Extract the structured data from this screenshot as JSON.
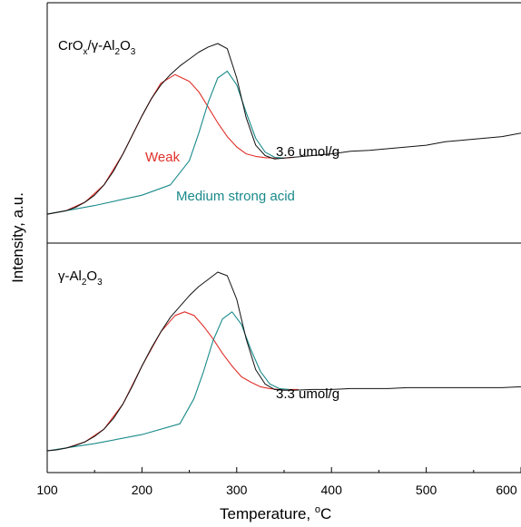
{
  "chart_data": {
    "type": "line",
    "xlabel": "Temperature, °C",
    "xlabel_main": "Temperature, ",
    "xlabel_unit_sup": "o",
    "xlabel_unit": "C",
    "ylabel": "Intensity, a.u.",
    "xlim": [
      100,
      600
    ],
    "x_ticks": [
      "100",
      "200",
      "300",
      "400",
      "500",
      "600"
    ],
    "grid": false,
    "colors": {
      "measured": "#111111",
      "weak": "#e0302a",
      "medium_strong_acid": "#1a8a8a",
      "axis": "#000000"
    },
    "panels": [
      {
        "label": "CrOₓ/γ-Al₂O₃",
        "label_parts": [
          "CrO",
          "x",
          "/γ-Al",
          "2",
          "O",
          "3"
        ],
        "acid_amount": "3.6 umol/g",
        "annotations": {
          "weak": "Weak",
          "medium_strong_acid": "Medium strong acid"
        },
        "series": [
          {
            "key": "measured",
            "x": [
              100,
              110,
              120,
              130,
              140,
              150,
              160,
              170,
              180,
              190,
              200,
              210,
              220,
              230,
              240,
              250,
              260,
              270,
              280,
              290,
              300,
              310,
              320,
              330,
              340,
              350,
              360,
              380,
              400,
              420,
              440,
              460,
              480,
              500,
              520,
              540,
              560,
              580,
              600
            ],
            "y": [
              0.01,
              0.02,
              0.03,
              0.05,
              0.08,
              0.12,
              0.18,
              0.26,
              0.36,
              0.47,
              0.58,
              0.68,
              0.76,
              0.82,
              0.87,
              0.91,
              0.95,
              0.98,
              1.0,
              0.97,
              0.8,
              0.57,
              0.41,
              0.35,
              0.33,
              0.335,
              0.34,
              0.35,
              0.36,
              0.375,
              0.38,
              0.39,
              0.4,
              0.41,
              0.43,
              0.44,
              0.45,
              0.46,
              0.48
            ]
          },
          {
            "key": "weak",
            "x": [
              100,
              120,
              140,
              160,
              180,
              200,
              210,
              220,
              235,
              250,
              260,
              270,
              280,
              290,
              300,
              310,
              320,
              330,
              340,
              350,
              360
            ],
            "y": [
              0.01,
              0.03,
              0.08,
              0.18,
              0.36,
              0.58,
              0.68,
              0.77,
              0.82,
              0.78,
              0.72,
              0.63,
              0.54,
              0.46,
              0.4,
              0.36,
              0.345,
              0.338,
              0.335,
              0.336,
              0.34
            ]
          },
          {
            "key": "medium_strong_acid",
            "x": [
              100,
              150,
              200,
              230,
              250,
              260,
              270,
              280,
              290,
              300,
              310,
              320,
              330,
              340,
              350
            ],
            "y": [
              0.01,
              0.06,
              0.12,
              0.18,
              0.32,
              0.48,
              0.66,
              0.8,
              0.84,
              0.76,
              0.6,
              0.45,
              0.37,
              0.34,
              0.335
            ]
          }
        ]
      },
      {
        "label": "γ-Al₂O₃",
        "label_parts": [
          "",
          "",
          "γ-Al",
          "2",
          "O",
          "3"
        ],
        "acid_amount": "3.3 umol/g",
        "annotations": {
          "weak": "",
          "medium_strong_acid": ""
        },
        "series": [
          {
            "key": "measured",
            "x": [
              100,
              110,
              120,
              130,
              140,
              150,
              160,
              170,
              180,
              190,
              200,
              210,
              220,
              230,
              240,
              250,
              260,
              270,
              280,
              290,
              300,
              310,
              320,
              330,
              340,
              350,
              360,
              380,
              400,
              420,
              440,
              460,
              480,
              500,
              520,
              540,
              560,
              580,
              600
            ],
            "y": [
              0.01,
              0.015,
              0.025,
              0.04,
              0.06,
              0.09,
              0.13,
              0.19,
              0.27,
              0.37,
              0.48,
              0.58,
              0.67,
              0.75,
              0.81,
              0.87,
              0.92,
              0.96,
              1.0,
              0.98,
              0.85,
              0.63,
              0.46,
              0.38,
              0.35,
              0.345,
              0.345,
              0.35,
              0.35,
              0.355,
              0.355,
              0.355,
              0.36,
              0.36,
              0.36,
              0.36,
              0.36,
              0.36,
              0.365
            ]
          },
          {
            "key": "weak",
            "x": [
              100,
              120,
              140,
              160,
              180,
              200,
              220,
              235,
              245,
              255,
              265,
              275,
              285,
              295,
              305,
              315,
              325,
              335,
              345,
              355,
              365
            ],
            "y": [
              0.01,
              0.025,
              0.06,
              0.13,
              0.27,
              0.48,
              0.67,
              0.76,
              0.78,
              0.76,
              0.7,
              0.63,
              0.55,
              0.48,
              0.42,
              0.39,
              0.365,
              0.355,
              0.35,
              0.35,
              0.35
            ]
          },
          {
            "key": "medium_strong_acid",
            "x": [
              100,
              150,
              200,
              240,
              255,
              265,
              275,
              285,
              295,
              305,
              315,
              325,
              335,
              345,
              355
            ],
            "y": [
              0.01,
              0.05,
              0.1,
              0.16,
              0.3,
              0.45,
              0.62,
              0.74,
              0.78,
              0.71,
              0.57,
              0.45,
              0.38,
              0.355,
              0.35
            ]
          }
        ]
      }
    ]
  }
}
